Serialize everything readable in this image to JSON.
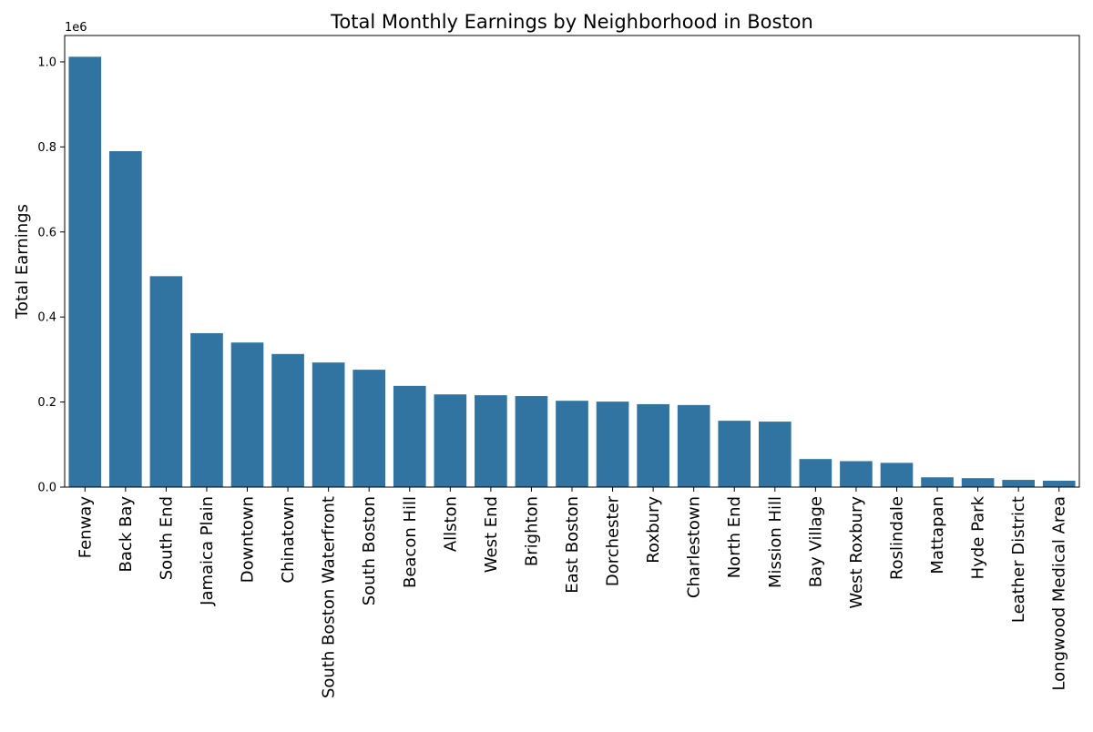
{
  "chart_data": {
    "type": "bar",
    "title": "Total Monthly Earnings by Neighborhood in Boston",
    "xlabel": "",
    "ylabel": "Total Earnings",
    "offset_text": "1e6",
    "y_tick_labels": [
      "0.0",
      "0.2",
      "0.4",
      "0.6",
      "0.8",
      "1.0"
    ],
    "y_ticks": [
      0,
      200000,
      400000,
      600000,
      800000,
      1000000
    ],
    "ylim": [
      0,
      1062000
    ],
    "grid": false,
    "legend": "none",
    "bar_color": "#3274a1",
    "categories": [
      "Fenway",
      "Back Bay",
      "South End",
      "Jamaica Plain",
      "Downtown",
      "Chinatown",
      "South Boston Waterfront",
      "South Boston",
      "Beacon Hill",
      "Allston",
      "West End",
      "Brighton",
      "East Boston",
      "Dorchester",
      "Roxbury",
      "Charlestown",
      "North End",
      "Mission Hill",
      "Bay Village",
      "West Roxbury",
      "Roslindale",
      "Mattapan",
      "Hyde Park",
      "Leather District",
      "Longwood Medical Area"
    ],
    "values": [
      1012000,
      790000,
      496000,
      362000,
      340000,
      313000,
      293000,
      276000,
      238000,
      218000,
      216000,
      214000,
      203000,
      201000,
      195000,
      193000,
      156000,
      154000,
      66000,
      61000,
      57000,
      23000,
      21000,
      17000,
      15000
    ]
  }
}
